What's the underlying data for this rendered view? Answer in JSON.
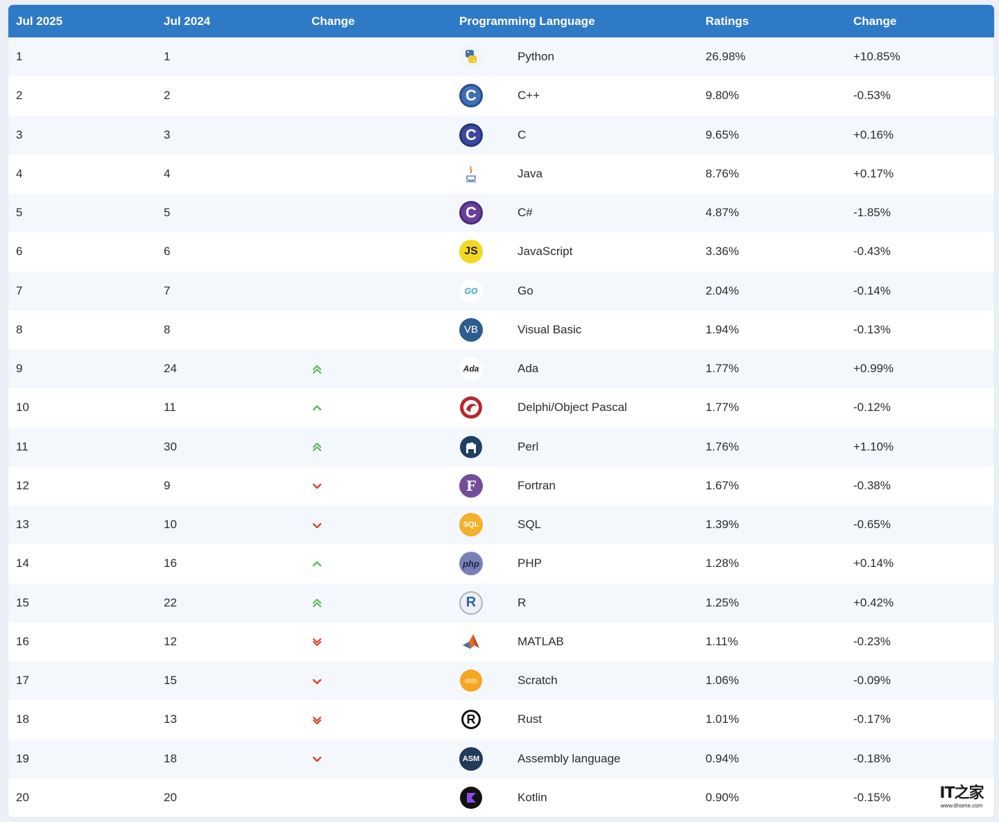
{
  "headers": {
    "jul2025": "Jul 2025",
    "jul2024": "Jul 2024",
    "change": "Change",
    "language": "Programming Language",
    "ratings": "Ratings",
    "change_pct": "Change"
  },
  "rows": [
    {
      "rank": "1",
      "prev": "1",
      "trend": "none",
      "language": "Python",
      "logo": "python-icon",
      "ratings": "26.98%",
      "change": "+10.85%"
    },
    {
      "rank": "2",
      "prev": "2",
      "trend": "none",
      "language": "C++",
      "logo": "cpp-icon",
      "ratings": "9.80%",
      "change": "-0.53%"
    },
    {
      "rank": "3",
      "prev": "3",
      "trend": "none",
      "language": "C",
      "logo": "c-icon",
      "ratings": "9.65%",
      "change": "+0.16%"
    },
    {
      "rank": "4",
      "prev": "4",
      "trend": "none",
      "language": "Java",
      "logo": "java-icon",
      "ratings": "8.76%",
      "change": "+0.17%"
    },
    {
      "rank": "5",
      "prev": "5",
      "trend": "none",
      "language": "C#",
      "logo": "csharp-icon",
      "ratings": "4.87%",
      "change": "-1.85%"
    },
    {
      "rank": "6",
      "prev": "6",
      "trend": "none",
      "language": "JavaScript",
      "logo": "javascript-icon",
      "ratings": "3.36%",
      "change": "-0.43%"
    },
    {
      "rank": "7",
      "prev": "7",
      "trend": "none",
      "language": "Go",
      "logo": "go-icon",
      "ratings": "2.04%",
      "change": "-0.14%"
    },
    {
      "rank": "8",
      "prev": "8",
      "trend": "none",
      "language": "Visual Basic",
      "logo": "visual-basic-icon",
      "ratings": "1.94%",
      "change": "-0.13%"
    },
    {
      "rank": "9",
      "prev": "24",
      "trend": "up2",
      "language": "Ada",
      "logo": "ada-icon",
      "ratings": "1.77%",
      "change": "+0.99%"
    },
    {
      "rank": "10",
      "prev": "11",
      "trend": "up",
      "language": "Delphi/Object Pascal",
      "logo": "delphi-icon",
      "ratings": "1.77%",
      "change": "-0.12%"
    },
    {
      "rank": "11",
      "prev": "30",
      "trend": "up2",
      "language": "Perl",
      "logo": "perl-icon",
      "ratings": "1.76%",
      "change": "+1.10%"
    },
    {
      "rank": "12",
      "prev": "9",
      "trend": "down",
      "language": "Fortran",
      "logo": "fortran-icon",
      "ratings": "1.67%",
      "change": "-0.38%"
    },
    {
      "rank": "13",
      "prev": "10",
      "trend": "down",
      "language": "SQL",
      "logo": "sql-icon",
      "ratings": "1.39%",
      "change": "-0.65%"
    },
    {
      "rank": "14",
      "prev": "16",
      "trend": "up",
      "language": "PHP",
      "logo": "php-icon",
      "ratings": "1.28%",
      "change": "+0.14%"
    },
    {
      "rank": "15",
      "prev": "22",
      "trend": "up2",
      "language": "R",
      "logo": "r-icon",
      "ratings": "1.25%",
      "change": "+0.42%"
    },
    {
      "rank": "16",
      "prev": "12",
      "trend": "down2",
      "language": "MATLAB",
      "logo": "matlab-icon",
      "ratings": "1.11%",
      "change": "-0.23%"
    },
    {
      "rank": "17",
      "prev": "15",
      "trend": "down",
      "language": "Scratch",
      "logo": "scratch-icon",
      "ratings": "1.06%",
      "change": "-0.09%"
    },
    {
      "rank": "18",
      "prev": "13",
      "trend": "down2",
      "language": "Rust",
      "logo": "rust-icon",
      "ratings": "1.01%",
      "change": "-0.17%"
    },
    {
      "rank": "19",
      "prev": "18",
      "trend": "down",
      "language": "Assembly language",
      "logo": "assembly-icon",
      "ratings": "0.94%",
      "change": "-0.18%"
    },
    {
      "rank": "20",
      "prev": "20",
      "trend": "none",
      "language": "Kotlin",
      "logo": "kotlin-icon",
      "ratings": "0.90%",
      "change": "-0.15%"
    }
  ],
  "logos": {
    "cpp": "C",
    "c": "C",
    "csharp": "C",
    "javascript": "JS",
    "go": "GO",
    "visual_basic": "VB",
    "ada": "Ada",
    "fortran": "F",
    "sql": "SQL",
    "php": "php",
    "r": "R",
    "rust": "R",
    "assembly": "ASM",
    "kotlin": "K"
  },
  "watermark": {
    "main": "IT之家",
    "sub": "www.ithome.com"
  },
  "colors": {
    "header_bg": "#2f7ac6",
    "trend_up": "#5cb85c",
    "trend_down": "#d9442a"
  }
}
